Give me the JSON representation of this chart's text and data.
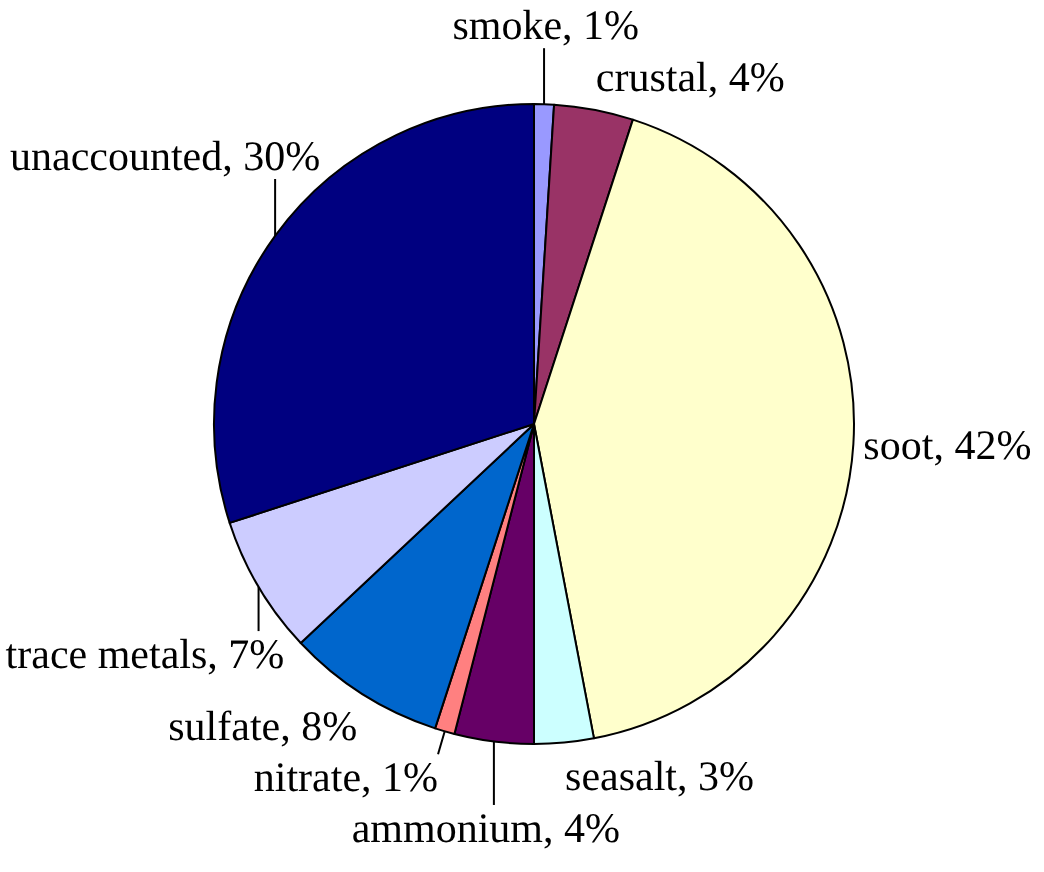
{
  "chart_data": {
    "type": "pie",
    "categories": [
      "smoke",
      "crustal",
      "soot",
      "seasalt",
      "ammonium",
      "nitrate",
      "sulfate",
      "trace metals",
      "unaccounted"
    ],
    "values": [
      1,
      4,
      42,
      3,
      4,
      1,
      8,
      7,
      30
    ],
    "colors": [
      "#9999ff",
      "#993366",
      "#ffffcc",
      "#ccffff",
      "#660066",
      "#ff8080",
      "#0066cc",
      "#ccccff",
      "#000080"
    ],
    "value_labels": [
      ", 1%",
      ", 4%",
      ", 42%",
      ", 3%",
      ", 4%",
      ", 1%",
      ", 8%",
      ", 7%",
      ", 30%"
    ]
  }
}
